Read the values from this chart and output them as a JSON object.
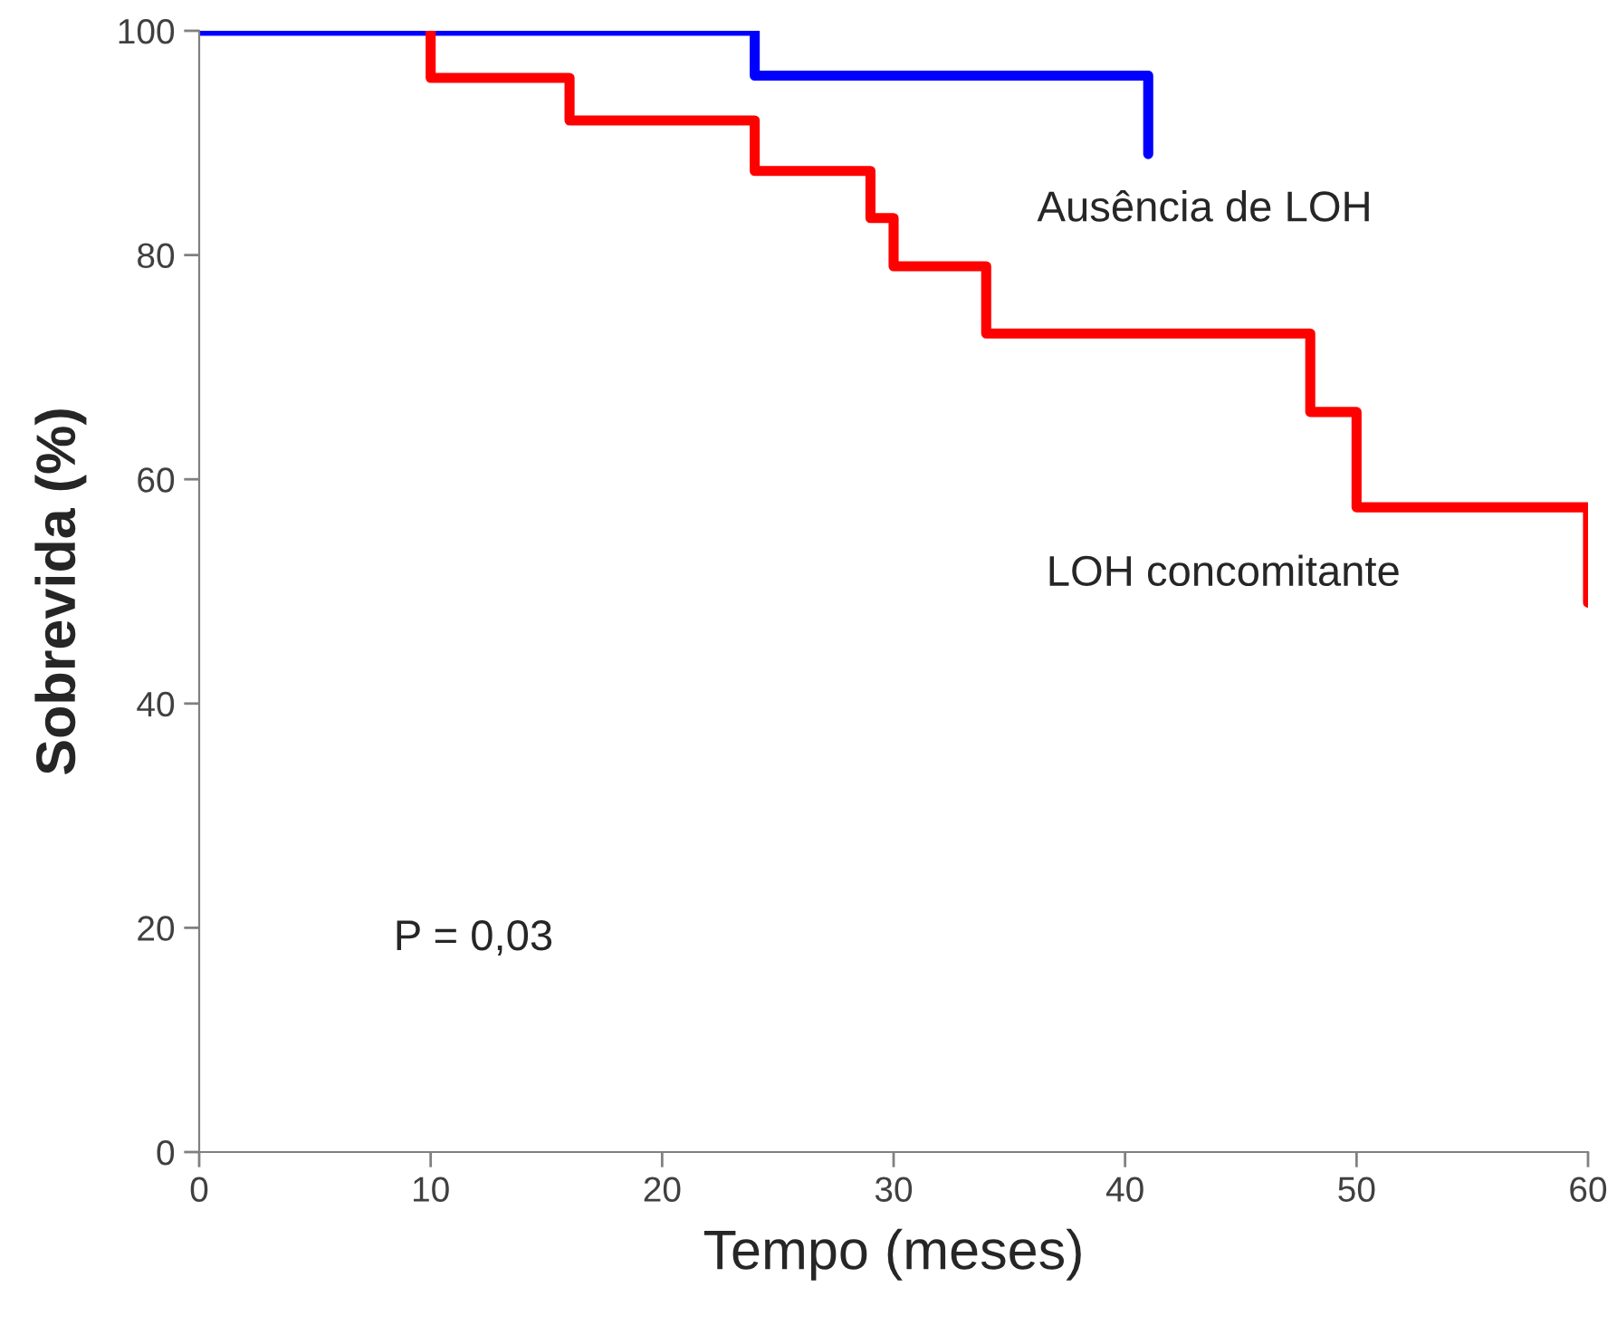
{
  "chart_data": {
    "type": "step",
    "xlabel": "Tempo (meses)",
    "ylabel": "Sobrevida (%)",
    "series": [
      {
        "name": "Ausência de LOH",
        "color": "#0000ff",
        "x": [
          0,
          24,
          41
        ],
        "values": [
          100,
          96,
          89
        ]
      },
      {
        "name": "LOH concomitante",
        "color": "#ff0000",
        "x": [
          10,
          10,
          16,
          24,
          29,
          30,
          34,
          48,
          50,
          60
        ],
        "values": [
          100,
          95.8,
          92,
          87.5,
          83.3,
          79,
          73,
          66,
          57.5,
          49
        ]
      }
    ],
    "annotations": [
      "P = 0,03"
    ],
    "xlim": [
      0,
      60
    ],
    "xticks": [
      0,
      10,
      20,
      30,
      40,
      50,
      60
    ],
    "ylim": [
      0,
      100
    ],
    "yticks": [
      0,
      20,
      40,
      60,
      80,
      100
    ],
    "grid": false,
    "legend": false
  }
}
